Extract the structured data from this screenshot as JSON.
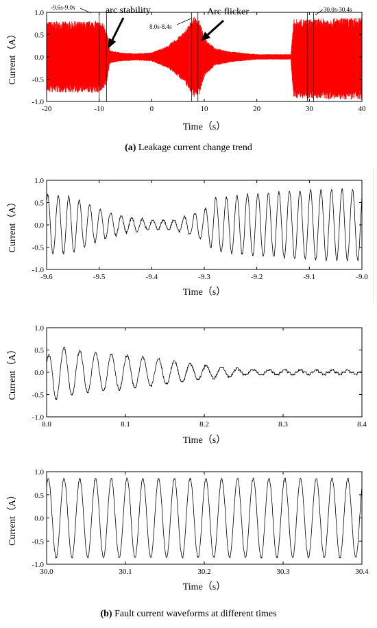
{
  "chart_data": [
    {
      "id": "a",
      "type": "line",
      "title": "",
      "xlabel": "Time（s）",
      "ylabel": "Current（A）",
      "xlim": [
        -20,
        40
      ],
      "ylim": [
        -1.0,
        1.0
      ],
      "xticks": [
        "-20",
        "-10",
        "0",
        "10",
        "20",
        "30",
        "40"
      ],
      "yticks": [
        "1.0",
        "0.5",
        "0.0",
        "-0.5",
        "-1.0"
      ],
      "series": [
        {
          "color": "#ff0000",
          "envelope": {
            "t": [
              -20,
              -12,
              -11.5,
              -10,
              -9,
              -8.5,
              -8,
              -6,
              -3,
              0,
              3,
              6,
              7,
              8,
              9,
              10,
              12,
              15,
              20,
              26.5,
              27,
              30,
              35,
              40
            ],
            "amp": [
              0.8,
              0.8,
              0.82,
              0.8,
              0.75,
              0.55,
              0.15,
              0.1,
              0.08,
              0.1,
              0.25,
              0.55,
              0.72,
              0.9,
              0.85,
              0.45,
              0.2,
              0.12,
              0.06,
              0.06,
              0.85,
              0.85,
              0.88,
              0.88
            ]
          }
        }
      ],
      "annotations": {
        "box1": "-9.6s-9.0s",
        "box2": "8.0s-8.4s",
        "box3": "30.0s-30.4s",
        "arrow1": "arc stability",
        "arrow2": "Arc flicker"
      }
    },
    {
      "id": "b1",
      "type": "line",
      "title": "",
      "xlabel": "Time（s）",
      "ylabel": "Current（A）",
      "xlim": [
        -9.6,
        -9.0
      ],
      "ylim": [
        -1.0,
        1.0
      ],
      "xticks": [
        "-9.6",
        "-9.5",
        "-9.4",
        "-9.3",
        "-9.2",
        "-9.1",
        "-9.0"
      ],
      "yticks": [
        "1.0",
        "0.5",
        "0.0",
        "-0.5",
        "-1.0"
      ],
      "series": [
        {
          "color": "#000000",
          "frequency_hz": 50,
          "envelope": {
            "t": [
              -9.6,
              -9.55,
              -9.5,
              -9.45,
              -9.4,
              -9.35,
              -9.3,
              -9.28,
              -9.2,
              -9.1,
              -9.0
            ],
            "amp": [
              0.68,
              0.62,
              0.35,
              0.18,
              0.1,
              0.12,
              0.35,
              0.6,
              0.7,
              0.78,
              0.8
            ]
          }
        }
      ]
    },
    {
      "id": "b2",
      "type": "line",
      "title": "",
      "xlabel": "Time（s）",
      "ylabel": "Current（A）",
      "xlim": [
        8.0,
        8.4
      ],
      "ylim": [
        -1.0,
        1.0
      ],
      "xticks": [
        "8.0",
        "8.1",
        "8.2",
        "8.3",
        "8.4"
      ],
      "yticks": [
        "1.0",
        "0.5",
        "0.0",
        "-0.5",
        "-1.0"
      ],
      "series": [
        {
          "color": "#000000",
          "frequency_hz": 50,
          "envelope": {
            "t": [
              8.0,
              8.01,
              8.02,
              8.05,
              8.1,
              8.15,
              8.2,
              8.25,
              8.3,
              8.4
            ],
            "amp": [
              0.3,
              0.62,
              0.55,
              0.45,
              0.38,
              0.28,
              0.15,
              0.07,
              0.04,
              0.03
            ]
          }
        }
      ]
    },
    {
      "id": "b3",
      "type": "line",
      "title": "",
      "xlabel": "Time（s）",
      "ylabel": "Current（A）",
      "xlim": [
        30.0,
        30.4
      ],
      "ylim": [
        -1.0,
        1.0
      ],
      "xticks": [
        "30.0",
        "30.1",
        "30.2",
        "30.3",
        "30.4"
      ],
      "yticks": [
        "1.0",
        "0.5",
        "0.0",
        "-0.5",
        "-1.0"
      ],
      "series": [
        {
          "color": "#000000",
          "frequency_hz": 50,
          "envelope": {
            "t": [
              30.0,
              30.4
            ],
            "amp": [
              0.85,
              0.85
            ]
          }
        }
      ]
    }
  ],
  "captions": {
    "a_tag": "(a)",
    "a_text": " Leakage current change trend",
    "b_tag": "(b)",
    "b_text": " Fault current waveforms at different times"
  }
}
